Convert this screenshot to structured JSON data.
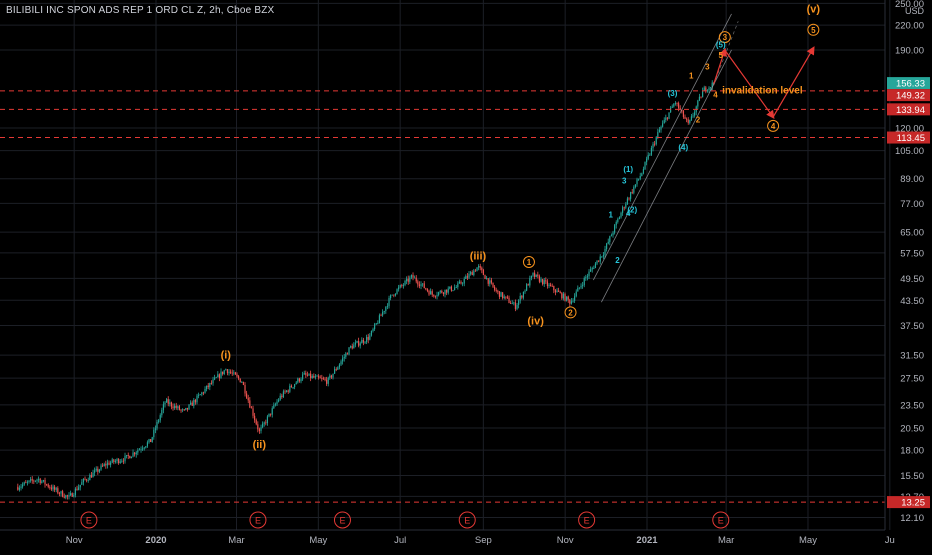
{
  "chart_data": {
    "type": "candlestick",
    "title": "BILIBILI INC SPON ADS REP 1 ORD CL Z, 2h, Cboe BZX",
    "currency": "USD",
    "scale": "log",
    "y_ticks": [
      12.1,
      13.7,
      15.5,
      18.0,
      20.5,
      23.5,
      27.5,
      31.5,
      37.5,
      43.5,
      49.5,
      57.5,
      65.0,
      77.0,
      89.0,
      105.0,
      120.0,
      190.0,
      220.0,
      250.0
    ],
    "x_ticks": [
      "Nov",
      "2020",
      "Mar",
      "May",
      "Jul",
      "Sep",
      "Nov",
      "2021",
      "Mar",
      "May",
      "Ju"
    ],
    "price_labels": [
      {
        "value": "156.33",
        "kind": "current"
      },
      {
        "value": "149.32",
        "kind": "level"
      },
      {
        "value": "133.94",
        "kind": "level"
      },
      {
        "value": "113.45",
        "kind": "level"
      },
      {
        "value": "13.25",
        "kind": "level"
      }
    ],
    "levels": [
      149.32,
      133.94,
      113.45,
      13.25
    ],
    "price_path": [
      [
        "2019-09-20",
        14.5
      ],
      [
        "2019-10-05",
        15.2
      ],
      [
        "2019-10-18",
        14.2
      ],
      [
        "2019-10-28",
        13.6
      ],
      [
        "2019-11-08",
        15.0
      ],
      [
        "2019-11-25",
        16.6
      ],
      [
        "2019-12-10",
        17.2
      ],
      [
        "2019-12-28",
        19.0
      ],
      [
        "2020-01-08",
        24.0
      ],
      [
        "2020-01-22",
        22.5
      ],
      [
        "2020-02-08",
        26.0
      ],
      [
        "2020-02-22",
        29.0
      ],
      [
        "2020-03-05",
        27.0
      ],
      [
        "2020-03-18",
        20.0
      ],
      [
        "2020-04-02",
        24.5
      ],
      [
        "2020-04-20",
        28.0
      ],
      [
        "2020-05-08",
        27.0
      ],
      [
        "2020-05-25",
        33.0
      ],
      [
        "2020-06-08",
        35.0
      ],
      [
        "2020-06-25",
        45.0
      ],
      [
        "2020-07-10",
        50.0
      ],
      [
        "2020-07-25",
        45.0
      ],
      [
        "2020-08-12",
        47.0
      ],
      [
        "2020-08-28",
        53.0
      ],
      [
        "2020-09-10",
        46.0
      ],
      [
        "2020-09-25",
        42.0
      ],
      [
        "2020-10-08",
        50.5
      ],
      [
        "2020-10-25",
        46.0
      ],
      [
        "2020-11-05",
        43.0
      ],
      [
        "2020-11-15",
        49.0
      ],
      [
        "2020-11-30",
        58.0
      ],
      [
        "2020-12-15",
        76.0
      ],
      [
        "2020-12-28",
        92.0
      ],
      [
        "2021-01-10",
        118.0
      ],
      [
        "2021-01-22",
        140.0
      ],
      [
        "2021-02-01",
        122.0
      ],
      [
        "2021-02-12",
        150.0
      ],
      [
        "2021-02-20",
        156.33
      ]
    ],
    "wave_labels": [
      {
        "text": "(i)",
        "date": "2020-02-22",
        "price": 31.5,
        "color": "orange"
      },
      {
        "text": "(ii)",
        "date": "2020-03-18",
        "price": 18.6,
        "color": "orange"
      },
      {
        "text": "(iii)",
        "date": "2020-08-28",
        "price": 56.5,
        "color": "orange"
      },
      {
        "text": "(iv)",
        "date": "2020-10-10",
        "price": 38.5,
        "color": "orange"
      },
      {
        "text": "(v)",
        "date": "2021-05-05",
        "price": 242.0,
        "color": "orange"
      },
      {
        "text": "1",
        "date": "2020-10-05",
        "price": 54.5,
        "color": "orange",
        "circled": true
      },
      {
        "text": "2",
        "date": "2020-11-05",
        "price": 40.5,
        "color": "orange",
        "circled": true
      },
      {
        "text": "3",
        "date": "2021-02-28",
        "price": 205.0,
        "color": "orange",
        "circled": true
      },
      {
        "text": "4",
        "date": "2021-04-05",
        "price": 121.5,
        "color": "orange",
        "circled": true
      },
      {
        "text": "5",
        "date": "2021-05-05",
        "price": 214.0,
        "color": "orange",
        "circled": true
      },
      {
        "text": "(1)",
        "date": "2020-12-18",
        "price": 94.0,
        "color": "cyan"
      },
      {
        "text": "(2)",
        "date": "2020-12-21",
        "price": 74.0,
        "color": "cyan"
      },
      {
        "text": "(3)",
        "date": "2021-01-20",
        "price": 147.0,
        "color": "cyan"
      },
      {
        "text": "(4)",
        "date": "2021-01-28",
        "price": 107.0,
        "color": "cyan"
      },
      {
        "text": "(5)",
        "date": "2021-02-25",
        "price": 196.0,
        "color": "cyan"
      },
      {
        "text": "1",
        "date": "2020-12-05",
        "price": 72.0,
        "color": "cyan"
      },
      {
        "text": "2",
        "date": "2020-12-10",
        "price": 55.0,
        "color": "cyan"
      },
      {
        "text": "3",
        "date": "2020-12-15",
        "price": 88.0,
        "color": "cyan"
      },
      {
        "text": "4",
        "date": "2020-12-18",
        "price": 72.5,
        "color": "cyan"
      },
      {
        "text": "1",
        "date": "2021-02-03",
        "price": 163.0,
        "color": "orange"
      },
      {
        "text": "2",
        "date": "2021-02-08",
        "price": 126.0,
        "color": "orange"
      },
      {
        "text": "3",
        "date": "2021-02-15",
        "price": 172.0,
        "color": "orange"
      },
      {
        "text": "4",
        "date": "2021-02-21",
        "price": 146.0,
        "color": "orange"
      },
      {
        "text": "5",
        "date": "2021-02-25",
        "price": 184.0,
        "color": "orange"
      }
    ],
    "projection": [
      [
        "2021-02-20",
        156.33
      ],
      [
        "2021-02-28",
        190.0
      ],
      [
        "2021-04-05",
        128.0
      ],
      [
        "2021-05-05",
        192.0
      ]
    ],
    "annotations": [
      {
        "text": "invalidation level",
        "date": "2021-03-28",
        "price": 133.94
      }
    ],
    "earnings_markers": [
      "2019-11-12",
      "2020-03-17",
      "2020-05-19",
      "2020-08-20",
      "2020-11-17",
      "2021-02-25"
    ],
    "earnings_label": "E",
    "colors": {
      "up": "#26a69a",
      "down": "#ef5350",
      "level": "#e53935",
      "wave": "#f7931e",
      "wave_alt": "#26c6da",
      "channel": "#b0b3b8",
      "grid": "#1c1f26"
    }
  }
}
